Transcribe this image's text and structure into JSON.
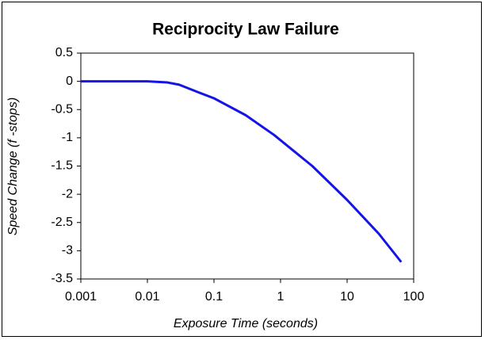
{
  "chart_data": {
    "type": "line",
    "title": "Reciprocity Law Failure",
    "x_label": "Exposure Time (seconds)",
    "y_label": "Speed Change (f -stops)",
    "xscale": "log",
    "grid": false,
    "xlim": [
      0.001,
      100
    ],
    "xticks": [
      0.001,
      0.01,
      0.1,
      1,
      10,
      100
    ],
    "ylim": [
      -3.5,
      0.5
    ],
    "yticks": [
      0.5,
      0,
      -0.5,
      -1,
      -1.5,
      -2,
      -2.5,
      -3,
      -3.5
    ],
    "series": [
      {
        "color": "#1414e6",
        "x": [
          0.001,
          0.01,
          0.02,
          0.03,
          0.06,
          0.1,
          0.3,
          0.8,
          3,
          10,
          30,
          65
        ],
        "values": [
          0,
          0,
          -0.02,
          -0.06,
          -0.2,
          -0.3,
          -0.6,
          -0.95,
          -1.5,
          -2.1,
          -2.7,
          -3.2
        ]
      }
    ]
  }
}
